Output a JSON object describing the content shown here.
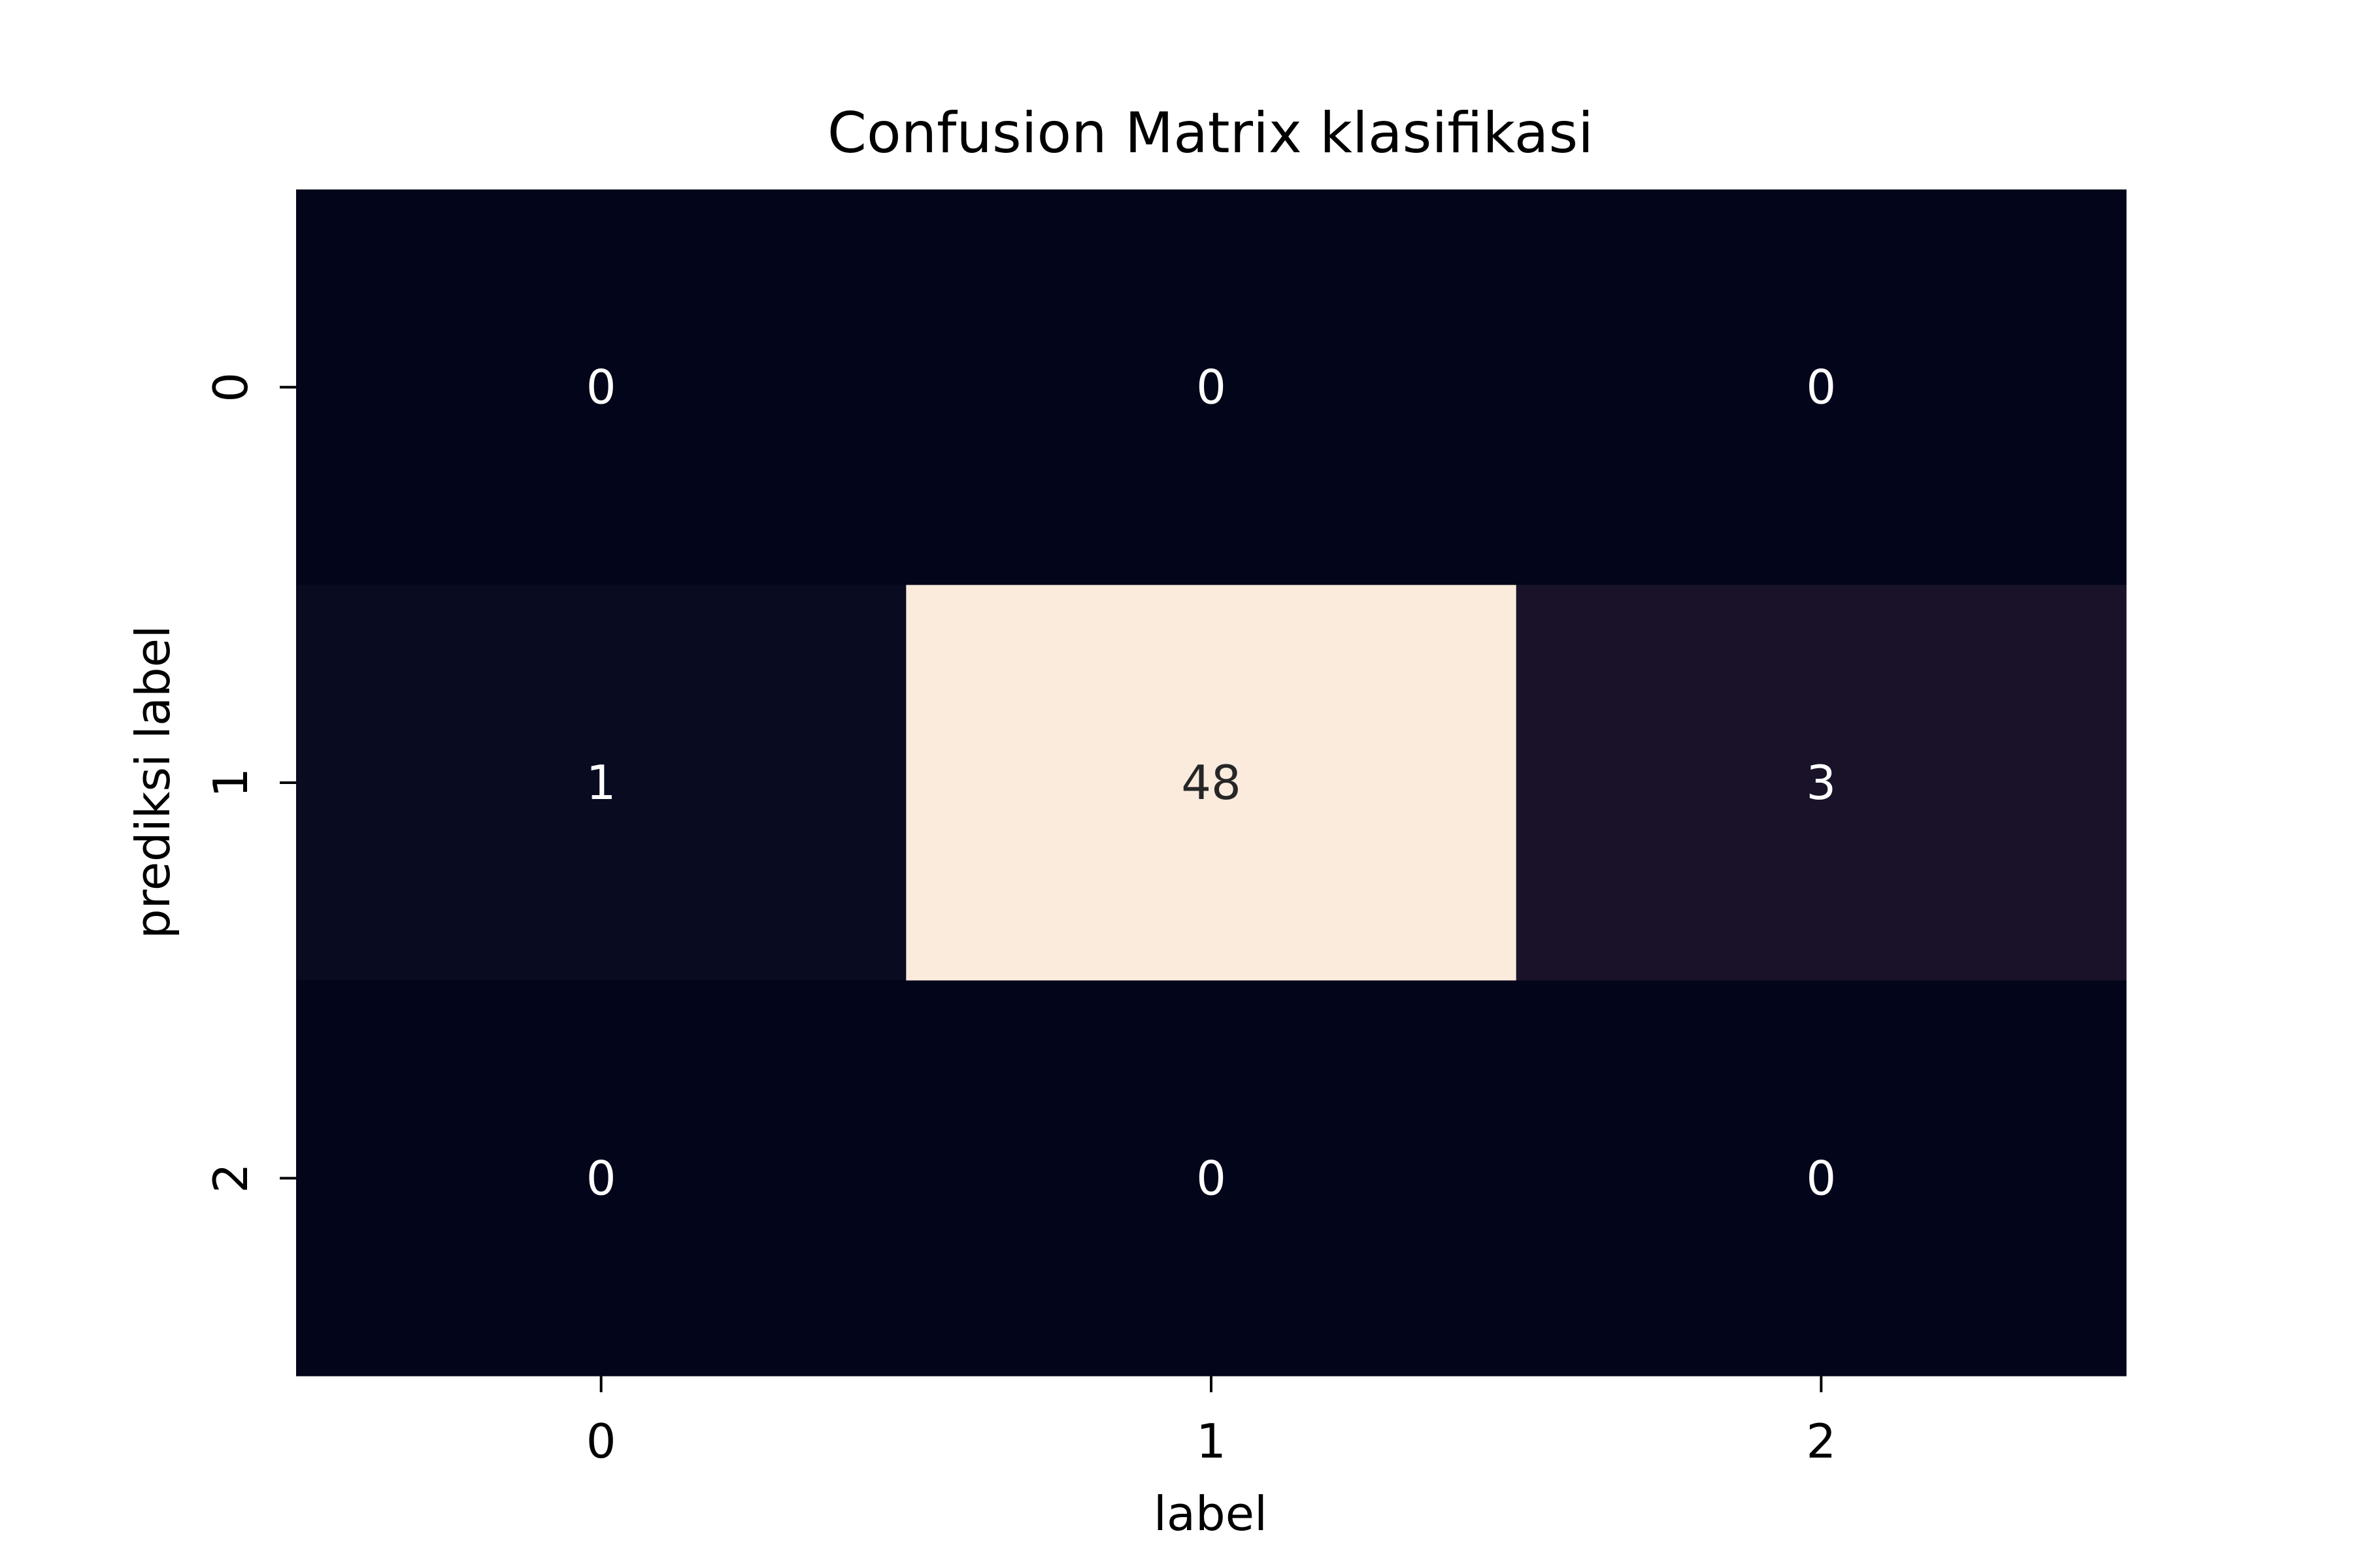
{
  "chart_data": {
    "type": "heatmap",
    "title": "Confusion Matrix klasifikasi",
    "xlabel": "label",
    "ylabel": "prediksi label",
    "x_categories": [
      "0",
      "1",
      "2"
    ],
    "y_categories": [
      "0",
      "1",
      "2"
    ],
    "matrix": [
      [
        0,
        0,
        0
      ],
      [
        1,
        48,
        3
      ],
      [
        0,
        0,
        0
      ]
    ],
    "value_range": [
      0,
      48
    ],
    "colorbar": false,
    "cell_colors": [
      [
        "#03061a",
        "#03061a",
        "#03061a"
      ],
      [
        "#090b20",
        "#faebdd",
        "#1a1229"
      ],
      [
        "#03061a",
        "#03061a",
        "#03061a"
      ]
    ],
    "annotation_color_dark_bg": "#ffffff",
    "annotation_color_light_bg": "#262626"
  }
}
